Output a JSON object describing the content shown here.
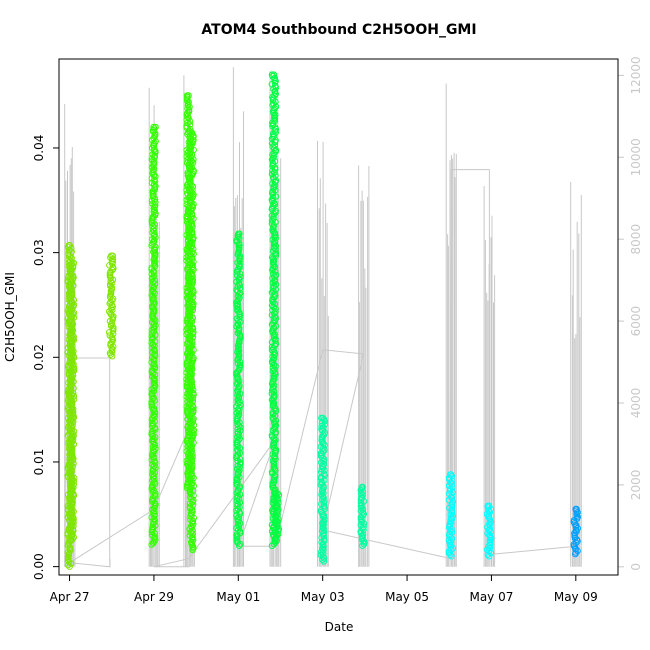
{
  "chart_data": {
    "type": "scatter",
    "title": "ATOM4 Southbound C2H5OOH_GMI",
    "xlabel": "Date",
    "ylabel": "C2H5OOH_GMI",
    "xlim": [
      "2018-04-26T18:00",
      "2018-05-10T00:00"
    ],
    "ylim": [
      -0.0008,
      0.0485
    ],
    "y2lim": [
      -200,
      12400
    ],
    "xticks": [
      {
        "label": "Apr 27",
        "value": "2018-04-27T00:00"
      },
      {
        "label": "Apr 29",
        "value": "2018-04-29T00:00"
      },
      {
        "label": "May 01",
        "value": "2018-05-01T00:00"
      },
      {
        "label": "May 03",
        "value": "2018-05-03T00:00"
      },
      {
        "label": "May 05",
        "value": "2018-05-05T00:00"
      },
      {
        "label": "May 07",
        "value": "2018-05-07T00:00"
      },
      {
        "label": "May 09",
        "value": "2018-05-09T00:00"
      }
    ],
    "yticks": [
      {
        "label": "0.00",
        "value": 0.0
      },
      {
        "label": "0.01",
        "value": 0.01
      },
      {
        "label": "0.02",
        "value": 0.02
      },
      {
        "label": "0.03",
        "value": 0.03
      },
      {
        "label": "0.04",
        "value": 0.04
      }
    ],
    "y2ticks": [
      {
        "label": "0",
        "value": 0
      },
      {
        "label": "2000",
        "value": 2000
      },
      {
        "label": "4000",
        "value": 4000
      },
      {
        "label": "6000",
        "value": 6000
      },
      {
        "label": "8000",
        "value": 8000
      },
      {
        "label": "10000",
        "value": 10000
      },
      {
        "label": "12000",
        "value": 12000
      }
    ],
    "grid": false,
    "legend": "none",
    "series": [
      {
        "role": "gmi_points",
        "groups": [
          {
            "color": "#7fe600",
            "clusters": [
              {
                "x": "2018-04-27T00:05",
                "ymin": 0.0,
                "ymax": 0.0307
              },
              {
                "x": "2018-04-27T01:30",
                "ymin": 0.0025,
                "ymax": 0.029
              },
              {
                "x": "2018-04-27T23:45",
                "ymin": 0.0201,
                "ymax": 0.0297
              }
            ]
          },
          {
            "color": "#33ff00",
            "clusters": [
              {
                "x": "2018-04-28T23:50",
                "ymin": 0.0021,
                "ymax": 0.042
              },
              {
                "x": "2018-04-29T19:40",
                "ymin": 0.0072,
                "ymax": 0.045
              },
              {
                "x": "2018-04-29T21:30",
                "ymin": 0.0016,
                "ymax": 0.0415
              }
            ]
          },
          {
            "color": "#00ff40",
            "clusters": [
              {
                "x": "2018-05-01T00:05",
                "ymin": 0.002,
                "ymax": 0.0318
              },
              {
                "x": "2018-05-01T20:15",
                "ymin": 0.002,
                "ymax": 0.047
              },
              {
                "x": "2018-05-01T22:15",
                "ymin": 0.0025,
                "ymax": 0.007
              }
            ]
          },
          {
            "color": "#00ffa0",
            "clusters": [
              {
                "x": "2018-05-03T00:05",
                "ymin": 0.0005,
                "ymax": 0.0142
              },
              {
                "x": "2018-05-03T22:40",
                "ymin": 0.002,
                "ymax": 0.0076
              }
            ]
          },
          {
            "color": "#00ffff",
            "clusters": [
              {
                "x": "2018-05-06T00:55",
                "ymin": 0.001,
                "ymax": 0.0088
              },
              {
                "x": "2018-05-06T22:40",
                "ymin": 0.001,
                "ymax": 0.0058
              }
            ]
          },
          {
            "color": "#00a0ff",
            "clusters": [
              {
                "x": "2018-05-09T00:00",
                "ymin": 0.0012,
                "ymax": 0.0055
              }
            ]
          }
        ]
      },
      {
        "role": "altitude_right_axis",
        "color": "#c8c8c8",
        "spikes": [
          {
            "x": "2018-04-27T00:10",
            "y2max": 11300
          },
          {
            "x": "2018-04-27T22:50",
            "y2max": 200
          },
          {
            "x": "2018-04-29T00:10",
            "y2max": 11700
          },
          {
            "x": "2018-04-29T20:00",
            "y2max": 12000
          },
          {
            "x": "2018-05-01T00:05",
            "y2max": 12200
          },
          {
            "x": "2018-05-01T21:00",
            "y2max": 12100
          },
          {
            "x": "2018-05-03T00:10",
            "y2max": 10400
          },
          {
            "x": "2018-05-03T23:15",
            "y2max": 9800
          },
          {
            "x": "2018-05-06T01:10",
            "y2max": 11800
          },
          {
            "x": "2018-05-06T22:50",
            "y2max": 9300
          },
          {
            "x": "2018-05-09T00:10",
            "y2max": 9400
          }
        ],
        "track": [
          [
            "2018-04-27T00:00",
            0
          ],
          [
            "2018-04-27T00:05",
            5100
          ],
          [
            "2018-04-27T22:50",
            5100
          ],
          [
            "2018-04-27T22:50",
            200
          ],
          [
            "2018-04-27T23:00",
            0
          ],
          [
            "2018-04-27T00:05",
            100
          ],
          [
            "2018-04-28T23:55",
            1400
          ],
          [
            "2018-04-29T20:00",
            3400
          ],
          [
            "2018-04-29T20:00",
            0
          ],
          [
            "2018-04-28T23:55",
            0
          ],
          [
            "2018-04-29T19:50",
            200
          ],
          [
            "2018-05-01T21:00",
            3100
          ],
          [
            "2018-05-01T00:10",
            500
          ],
          [
            "2018-05-01T21:00",
            500
          ],
          [
            "2018-05-03T00:05",
            5300
          ],
          [
            "2018-05-03T23:15",
            5200
          ],
          [
            "2018-05-03T00:05",
            900
          ],
          [
            "2018-05-06T00:55",
            200
          ],
          [
            "2018-05-06T01:10",
            9700
          ],
          [
            "2018-05-06T22:50",
            9700
          ],
          [
            "2018-05-06T22:50",
            300
          ],
          [
            "2018-05-09T00:10",
            500
          ]
        ]
      }
    ]
  }
}
